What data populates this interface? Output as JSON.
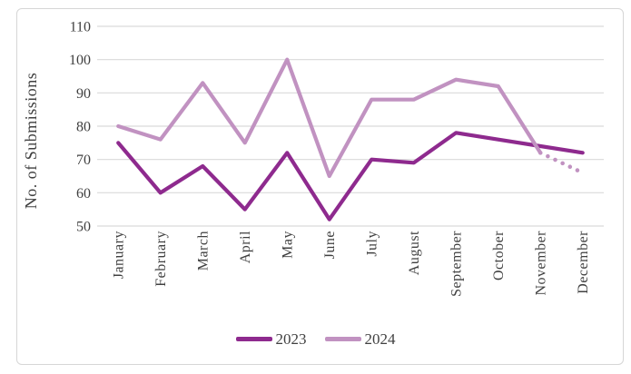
{
  "chart_data": {
    "type": "line",
    "title": "",
    "xlabel": "",
    "ylabel": "No. of Submissions",
    "categories": [
      "January",
      "February",
      "March",
      "April",
      "May",
      "June",
      "July",
      "August",
      "September",
      "October",
      "November",
      "December"
    ],
    "y_ticks": [
      50,
      60,
      70,
      80,
      90,
      100,
      110
    ],
    "ylim": [
      50,
      110
    ],
    "grid": true,
    "legend_position": "bottom",
    "series": [
      {
        "name": "2023",
        "color": "#8E2A8E",
        "style": "solid",
        "projection_from_index": null,
        "values": [
          75,
          60,
          68,
          55,
          72,
          52,
          70,
          69,
          78,
          76,
          74,
          72
        ]
      },
      {
        "name": "2024",
        "color": "#C192C1",
        "style": "solid-then-dotted-projection",
        "projection_from_index": 10,
        "values": [
          80,
          76,
          93,
          75,
          100,
          65,
          88,
          88,
          94,
          92,
          72,
          66
        ]
      }
    ]
  },
  "colors": {
    "grid": "#d9d9d9",
    "axis_text": "#404040",
    "frame_border": "#d6d6d6",
    "background": "#ffffff"
  }
}
